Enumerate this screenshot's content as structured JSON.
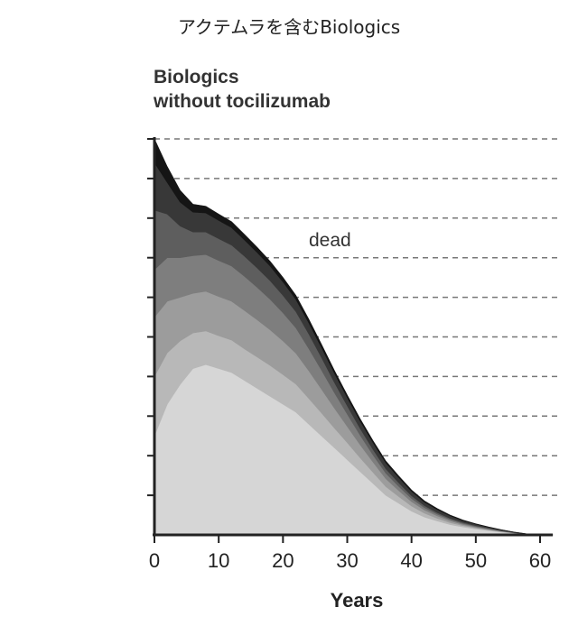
{
  "caption": "アクテムラを含むBiologics",
  "chart_data": {
    "type": "area",
    "title_lines": [
      "Biologics",
      "without tocilizumab"
    ],
    "xlabel": "Years",
    "ylabel": "",
    "xlim": [
      0,
      62
    ],
    "ylim": [
      0,
      100
    ],
    "x_ticks": [
      0,
      10,
      20,
      30,
      40,
      50,
      60
    ],
    "y_tick_count": 10,
    "grid": "horizontal dashed",
    "annotation": "dead",
    "x": [
      0,
      2,
      4,
      6,
      8,
      10,
      12,
      14,
      16,
      18,
      20,
      22,
      24,
      26,
      28,
      30,
      32,
      34,
      36,
      38,
      40,
      42,
      44,
      46,
      48,
      50,
      52,
      54,
      56,
      58,
      60,
      62
    ],
    "series": [
      {
        "color": "#d6d6d6",
        "values": [
          25,
          33,
          38,
          42,
          43,
          42,
          41,
          39,
          37,
          35,
          33,
          31,
          28,
          25,
          22,
          19,
          16,
          13,
          10,
          8,
          6,
          4.5,
          3.5,
          2.6,
          2,
          1.5,
          1.1,
          0.7,
          0.4,
          0.2,
          0.1,
          0
        ]
      },
      {
        "color": "#b8b8b8",
        "values": [
          15,
          13,
          11,
          9,
          8.5,
          8.3,
          8.2,
          8,
          7.9,
          7.8,
          7.5,
          7.1,
          6.5,
          5.8,
          5,
          4.3,
          3.5,
          2.8,
          2.2,
          1.7,
          1.3,
          1,
          0.7,
          0.5,
          0.35,
          0.25,
          0.15,
          0.1,
          0.05,
          0,
          0,
          0
        ]
      },
      {
        "color": "#9c9c9c",
        "values": [
          15,
          13,
          11,
          10,
          10,
          9.9,
          9.8,
          9.7,
          9.4,
          9,
          8.5,
          7.8,
          7,
          6,
          5,
          4.1,
          3.3,
          2.6,
          2,
          1.5,
          1.1,
          0.8,
          0.6,
          0.45,
          0.3,
          0.2,
          0.15,
          0.1,
          0.05,
          0,
          0,
          0
        ]
      },
      {
        "color": "#7e7e7e",
        "values": [
          12,
          11,
          10,
          9.5,
          9.3,
          9.1,
          8.9,
          8.6,
          8.2,
          7.7,
          7.1,
          6.4,
          5.6,
          4.8,
          3.9,
          3.1,
          2.4,
          1.8,
          1.4,
          1.1,
          0.8,
          0.6,
          0.45,
          0.35,
          0.25,
          0.2,
          0.15,
          0.1,
          0.05,
          0,
          0,
          0
        ]
      },
      {
        "color": "#5e5e5e",
        "values": [
          15,
          11,
          8,
          6,
          5.7,
          5.5,
          5.3,
          5.1,
          4.9,
          4.7,
          4.4,
          4.1,
          3.7,
          3.2,
          2.6,
          2.1,
          1.7,
          1.4,
          1.1,
          0.9,
          0.7,
          0.5,
          0.4,
          0.3,
          0.25,
          0.2,
          0.15,
          0.1,
          0.05,
          0,
          0,
          0
        ]
      },
      {
        "color": "#383838",
        "values": [
          12,
          8,
          6,
          5,
          4.8,
          4.6,
          4.4,
          4.1,
          3.9,
          3.7,
          3.4,
          3.1,
          2.8,
          2.5,
          2.3,
          2.1,
          1.9,
          1.7,
          1.5,
          1.3,
          1.1,
          0.9,
          0.75,
          0.6,
          0.45,
          0.35,
          0.25,
          0.15,
          0.1,
          0.05,
          0,
          0
        ]
      },
      {
        "color": "#151515",
        "values": [
          6,
          4,
          3,
          2,
          1.7,
          1.6,
          1.5,
          1.4,
          1.3,
          1.2,
          1.1,
          1.0,
          0.9,
          0.8,
          0.7,
          0.6,
          0.55,
          0.5,
          0.45,
          0.4,
          0.35,
          0.3,
          0.25,
          0.2,
          0.15,
          0.1,
          0.05,
          0.05,
          0,
          0,
          0,
          0
        ]
      }
    ]
  }
}
